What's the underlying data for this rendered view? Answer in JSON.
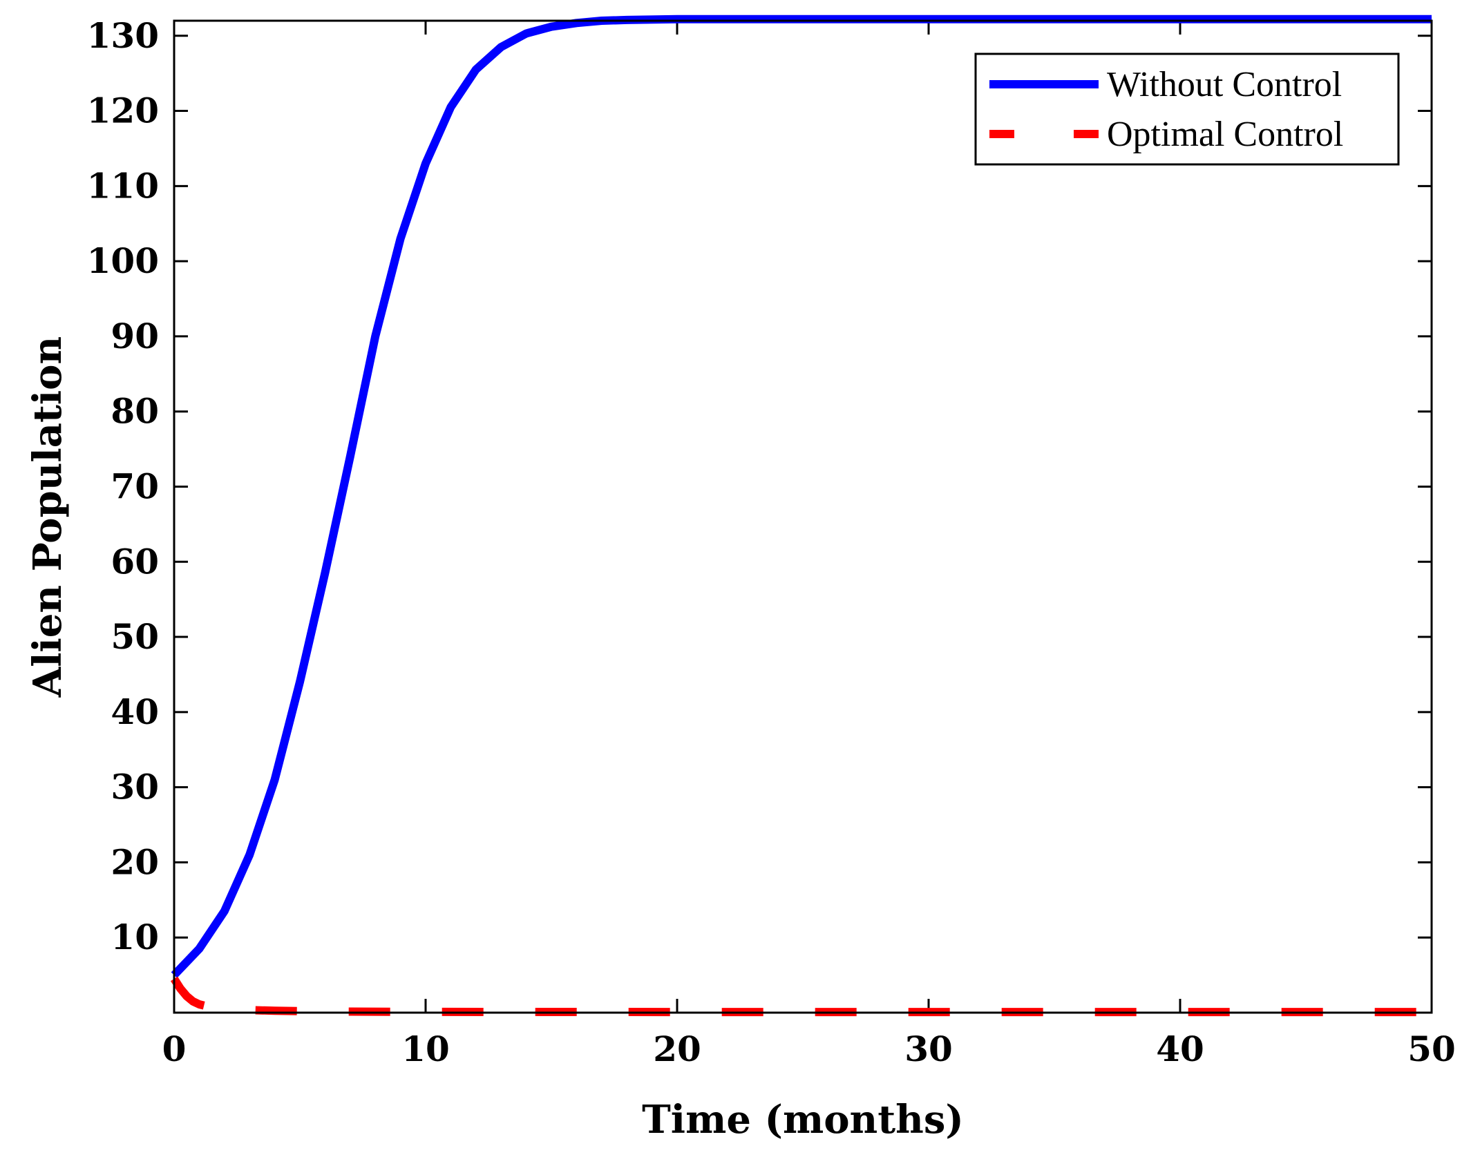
{
  "chart_data": {
    "type": "line",
    "title": "",
    "xlabel": "Time (months)",
    "ylabel": "Alien Population",
    "xlim": [
      0,
      50
    ],
    "ylim": [
      0,
      132
    ],
    "xticks": [
      0,
      10,
      20,
      30,
      40,
      50
    ],
    "yticks": [
      10,
      20,
      30,
      40,
      50,
      60,
      70,
      80,
      90,
      100,
      110,
      120,
      130
    ],
    "grid": false,
    "legend_position": "top-right",
    "series": [
      {
        "name": "Without Control",
        "color": "#0000ff",
        "style": "solid",
        "x": [
          0,
          1,
          2,
          3,
          4,
          5,
          6,
          7,
          8,
          9,
          10,
          11,
          12,
          13,
          14,
          15,
          16,
          17,
          18,
          20,
          25,
          30,
          35,
          40,
          45,
          50
        ],
        "y": [
          5,
          8.5,
          13.5,
          21,
          31,
          44,
          58.5,
          74,
          90,
          103,
          113,
          120.5,
          125.5,
          128.5,
          130.3,
          131.2,
          131.7,
          132,
          132.1,
          132.2,
          132.2,
          132.2,
          132.2,
          132.2,
          132.2,
          132.2
        ]
      },
      {
        "name": "Optimal Control",
        "color": "#ff0000",
        "style": "dashed",
        "x": [
          0,
          0.25,
          0.5,
          0.75,
          1,
          1.5,
          2,
          3,
          4,
          6,
          10,
          20,
          30,
          40,
          50
        ],
        "y": [
          4.5,
          3.2,
          2.2,
          1.5,
          1.1,
          0.7,
          0.5,
          0.35,
          0.25,
          0.15,
          0.1,
          0.08,
          0.08,
          0.08,
          0.08
        ]
      }
    ]
  }
}
